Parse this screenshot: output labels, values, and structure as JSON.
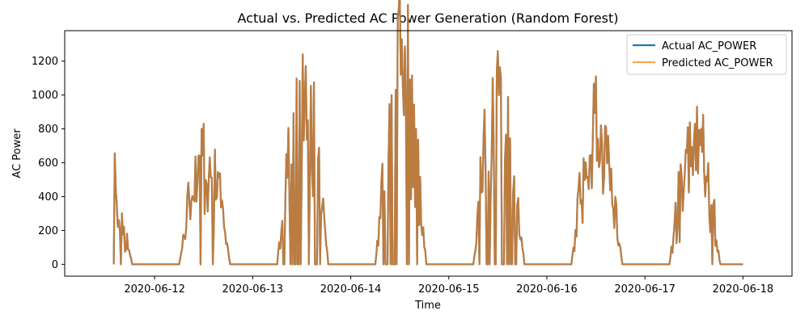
{
  "chart_data": {
    "type": "line",
    "title": "Actual vs. Predicted AC Power Generation (Random Forest)",
    "xlabel": "Time",
    "ylabel": "AC Power",
    "x_ticks": [
      "2020-06-12",
      "2020-06-13",
      "2020-06-14",
      "2020-06-15",
      "2020-06-16",
      "2020-06-17",
      "2020-06-18"
    ],
    "y_ticks": [
      0,
      200,
      400,
      600,
      800,
      1000,
      1200
    ],
    "xlim": [
      "2020-06-11 02:00",
      "2020-06-18 12:00"
    ],
    "ylim": [
      -70,
      1380
    ],
    "grid": false,
    "legend_position": "top-right",
    "series_colors": {
      "actual": "#1f77b4",
      "predicted": "#ff7f0e",
      "overlap": "#c27f48"
    },
    "series": [
      {
        "name": "Actual AC_POWER",
        "color": "#1f77b4",
        "days": [
          {
            "date": "2020-06-11",
            "start": 14.0,
            "end": 18.5,
            "peak_hour": 14.1,
            "peak": 640,
            "amplitude": 460,
            "dropouts": false
          },
          {
            "date": "2020-06-12",
            "start": 6.0,
            "end": 18.5,
            "peak_hour": 12.1,
            "peak": 830,
            "amplitude": 560,
            "dropouts": false
          },
          {
            "date": "2020-06-13",
            "start": 6.0,
            "end": 18.5,
            "peak_hour": 12.2,
            "peak": 1240,
            "amplitude": 900,
            "dropouts": true
          },
          {
            "date": "2020-06-14",
            "start": 6.0,
            "end": 18.5,
            "peak_hour": 12.6,
            "peak": 1330,
            "amplitude": 1050,
            "dropouts": true
          },
          {
            "date": "2020-06-15",
            "start": 6.0,
            "end": 18.5,
            "peak_hour": 12.1,
            "peak": 1260,
            "amplitude": 880,
            "dropouts": true
          },
          {
            "date": "2020-06-16",
            "start": 6.0,
            "end": 18.5,
            "peak_hour": 11.9,
            "peak": 1110,
            "amplitude": 700,
            "dropouts": false
          },
          {
            "date": "2020-06-17",
            "start": 6.0,
            "end": 18.5,
            "peak_hour": 12.3,
            "peak": 830,
            "amplitude": 620,
            "dropouts": false
          }
        ]
      },
      {
        "name": "Predicted AC_POWER",
        "color": "#ff7f0e",
        "days": "same as Actual AC_POWER (curves overlap)"
      }
    ]
  },
  "legend": {
    "items": [
      {
        "label": "Actual AC_POWER",
        "color": "#1f77b4"
      },
      {
        "label": "Predicted AC_POWER",
        "color": "#ff7f0e"
      }
    ]
  }
}
